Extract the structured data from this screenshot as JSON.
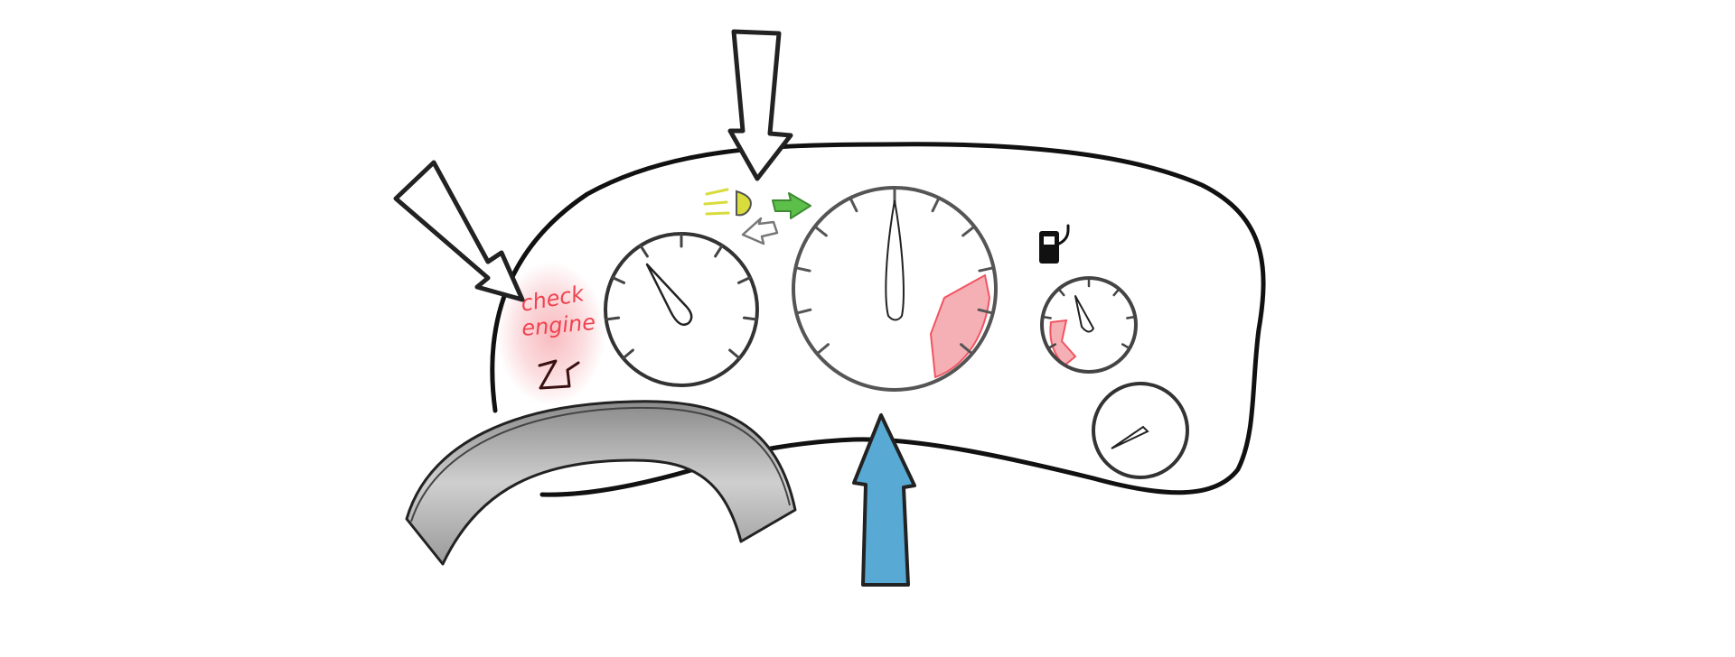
{
  "warning_light": {
    "text_line1": "check",
    "text_line2": "engine",
    "color": "#ef4350",
    "glow": "#f7b3b8"
  },
  "indicators": {
    "headlight_icon": "headlight-icon",
    "headlight_color": "#d8dc3c",
    "turn_right_icon": "turn-signal-right-icon",
    "turn_right_color": "#5cbf4a",
    "turn_left_icon": "turn-signal-left-icon",
    "fuel_icon": "fuel-pump-icon"
  },
  "callout_arrows": {
    "outline_color": "#222222",
    "filled_color": "#58a9d3",
    "count": 3
  },
  "gauges": [
    {
      "name": "left-gauge"
    },
    {
      "name": "center-gauge",
      "redline_color": "#ef4350"
    },
    {
      "name": "small-gauge",
      "redline_color": "#ef4350"
    },
    {
      "name": "bottom-gauge"
    }
  ],
  "steering_wheel": {
    "color": "#9a9a9a"
  }
}
